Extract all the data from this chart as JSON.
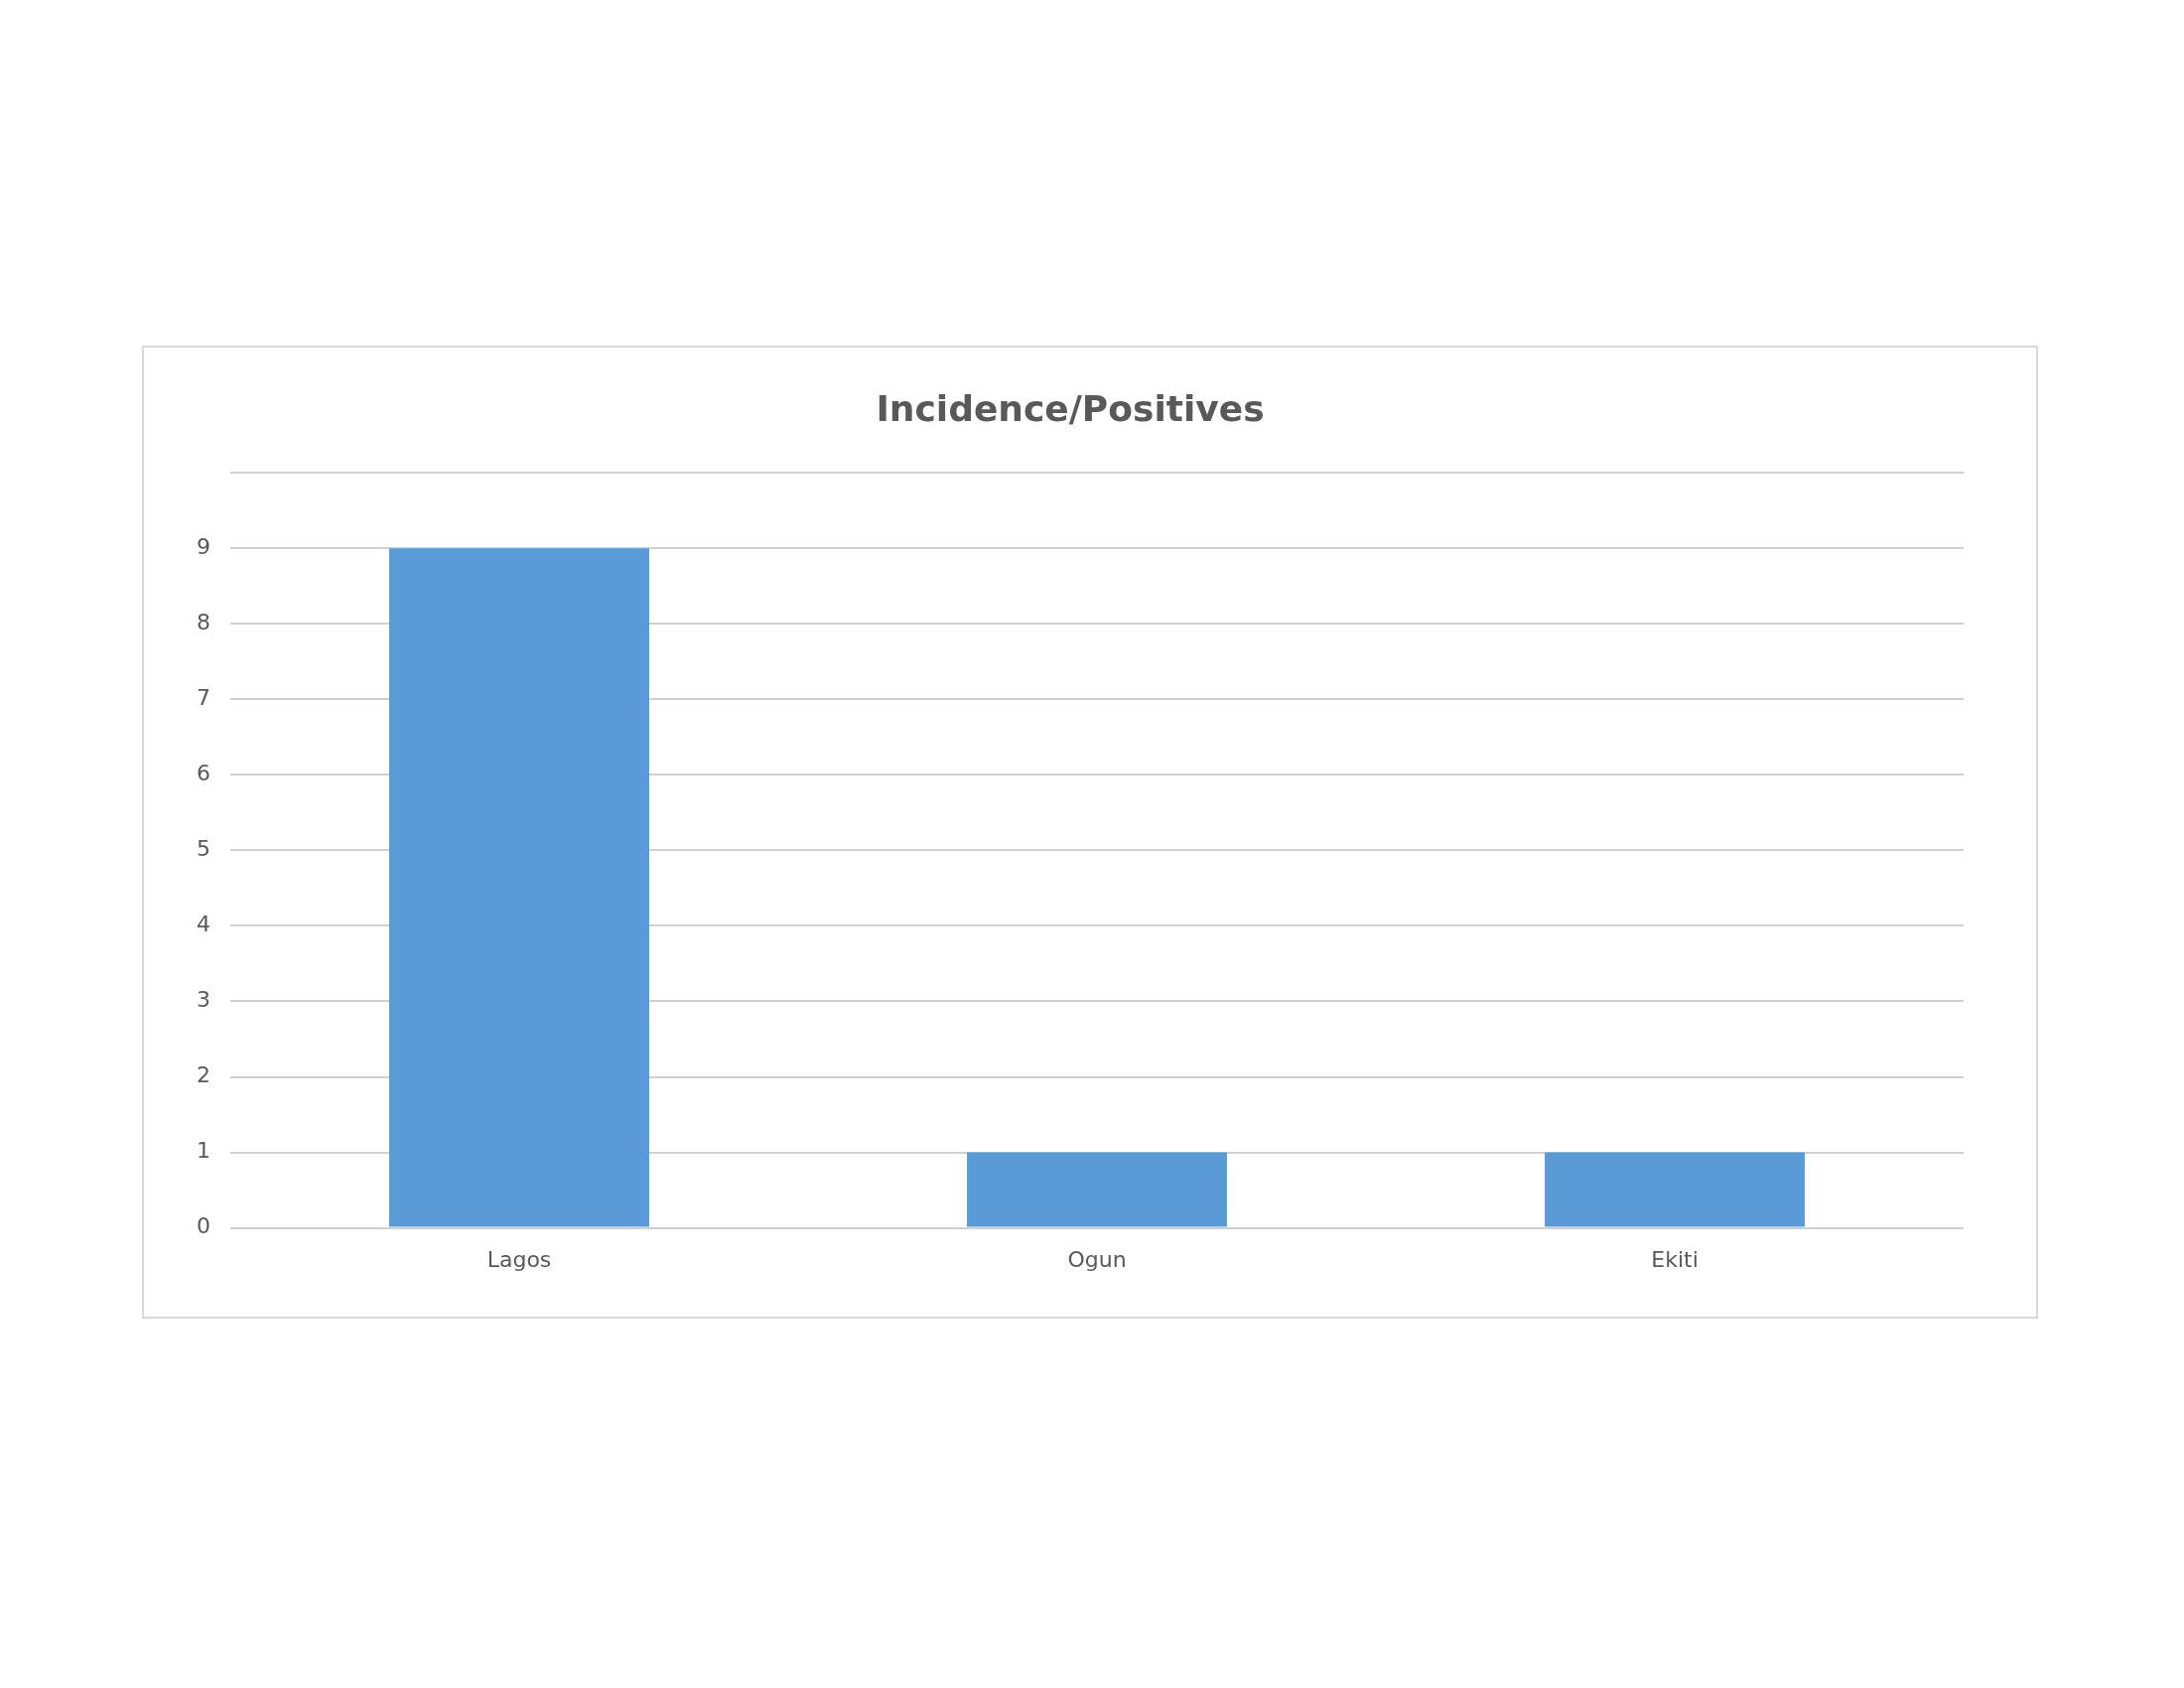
{
  "chart_data": {
    "type": "bar",
    "title": "Incidence/Positives",
    "categories": [
      "Lagos",
      "Ogun",
      "Ekiti"
    ],
    "values": [
      9,
      1,
      1
    ],
    "color": "#5b9bd5",
    "ylim": [
      0,
      10
    ],
    "yticks": [
      0,
      1,
      2,
      3,
      4,
      5,
      6,
      7,
      8,
      9,
      {
        "value": 10,
        "label": null
      }
    ],
    "grid": "y",
    "legend": false
  }
}
